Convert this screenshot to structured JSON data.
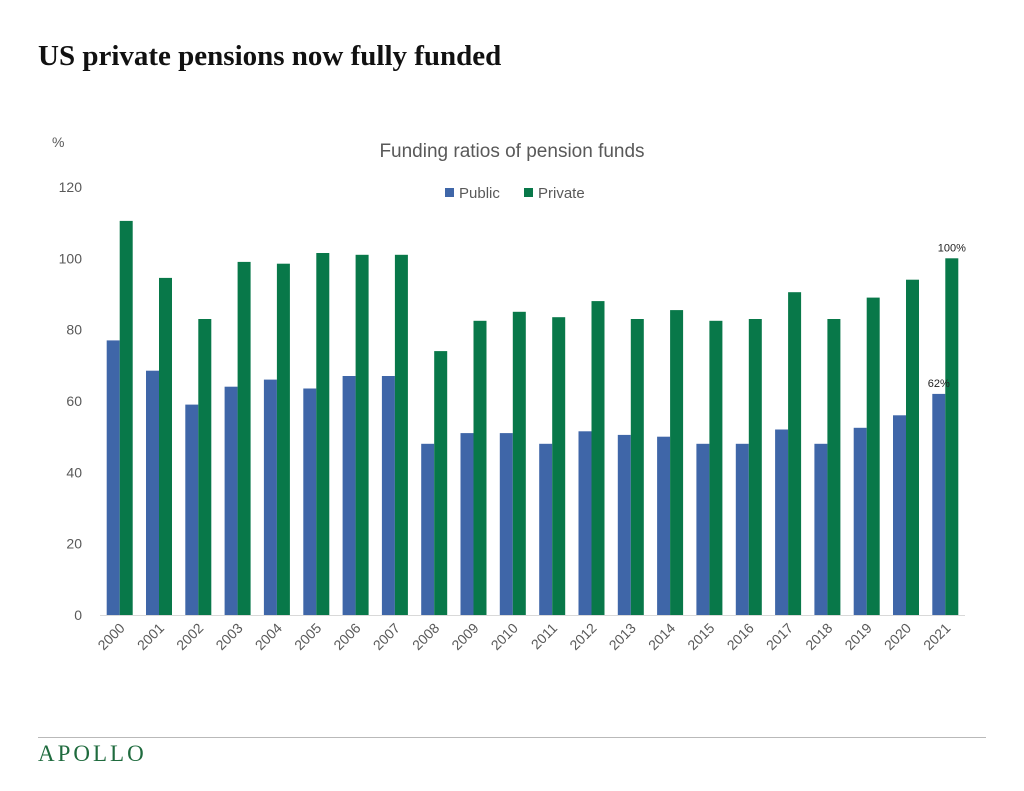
{
  "page": {
    "title": "US private pensions now fully funded",
    "brand": "APOLLO"
  },
  "colors": {
    "public": "#3f66a8",
    "private": "#087849",
    "axis_text": "#595959",
    "title_text": "#595959"
  },
  "chart_data": {
    "type": "bar",
    "title": "Funding ratios of pension funds",
    "ylabel": "%",
    "xlabel": "",
    "ylim": [
      0,
      120
    ],
    "yticks": [
      0,
      20,
      40,
      60,
      80,
      100,
      120
    ],
    "grid": false,
    "legend": "top-center",
    "categories": [
      "2000",
      "2001",
      "2002",
      "2003",
      "2004",
      "2005",
      "2006",
      "2007",
      "2008",
      "2009",
      "2010",
      "2011",
      "2012",
      "2013",
      "2014",
      "2015",
      "2016",
      "2017",
      "2018",
      "2019",
      "2020",
      "2021"
    ],
    "series": [
      {
        "name": "Public",
        "values": [
          77,
          68.5,
          59,
          64,
          66,
          63.5,
          67,
          67,
          48,
          51,
          51,
          48,
          51.5,
          50.5,
          50,
          48,
          48,
          52,
          48,
          52.5,
          56,
          62
        ]
      },
      {
        "name": "Private",
        "values": [
          110.5,
          94.5,
          83,
          99,
          98.5,
          101.5,
          101,
          101,
          74,
          82.5,
          85,
          83.5,
          88,
          83,
          85.5,
          82.5,
          83,
          90.5,
          83,
          89,
          94,
          100
        ]
      }
    ],
    "annotations": [
      {
        "series": "Public",
        "category": "2021",
        "text": "62%"
      },
      {
        "series": "Private",
        "category": "2021",
        "text": "100%"
      }
    ]
  }
}
